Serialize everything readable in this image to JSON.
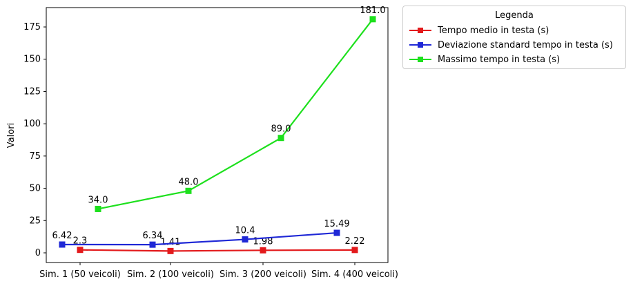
{
  "chart_data": {
    "type": "line",
    "title": "",
    "xlabel": "",
    "ylabel": "Valori",
    "ylim": [
      -7.5,
      190
    ],
    "yticks": [
      0,
      25,
      50,
      75,
      100,
      125,
      150,
      175
    ],
    "categories": [
      "Sim. 1 (50 veicoli)",
      "Sim. 2 (100 veicoli)",
      "Sim. 3 (200 veicoli)",
      "Sim. 4 (400 veicoli)"
    ],
    "legend_title": "Legenda",
    "series": [
      {
        "name": "Tempo medio in testa (s)",
        "color": "#e31a1c",
        "offset": 0,
        "values": [
          2.3,
          1.41,
          1.98,
          2.22
        ],
        "labels": [
          "2.3",
          "1.41",
          "1.98",
          "2.22"
        ]
      },
      {
        "name": "Deviazione standard tempo in testa (s)",
        "color": "#1f28d6",
        "offset": -1,
        "values": [
          6.42,
          6.34,
          10.4,
          15.49
        ],
        "labels": [
          "6.42",
          "6.34",
          "10.4",
          "15.49"
        ]
      },
      {
        "name": "Massimo tempo in testa (s)",
        "color": "#1de01d",
        "offset": 1,
        "values": [
          34.0,
          48.0,
          89.0,
          181.0
        ],
        "labels": [
          "34.0",
          "48.0",
          "89.0",
          "181.0"
        ]
      }
    ]
  }
}
